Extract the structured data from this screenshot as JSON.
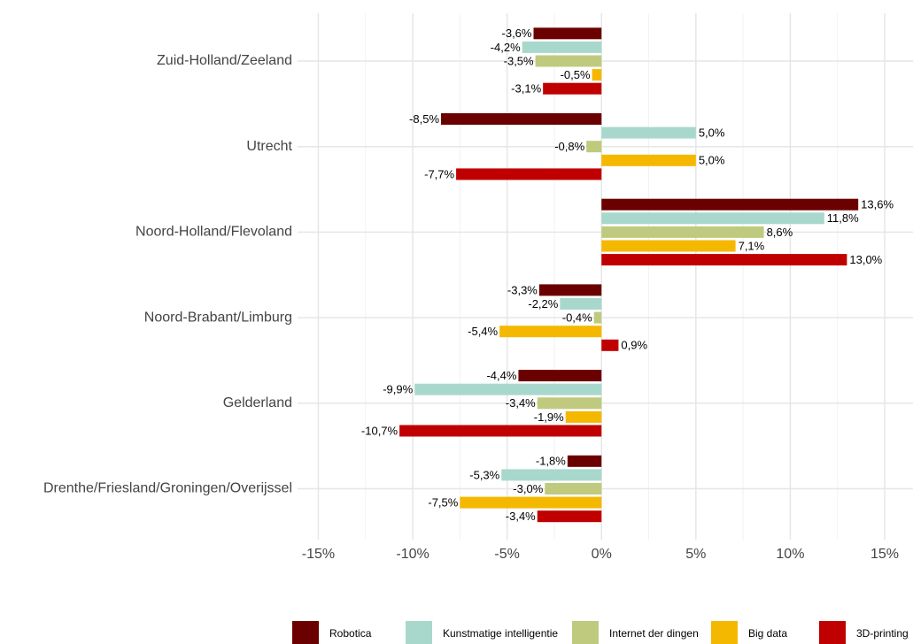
{
  "chart_data": {
    "type": "bar",
    "orientation": "horizontal",
    "categories": [
      "Zuid-Holland/Zeeland",
      "Utrecht",
      "Noord-Holland/Flevoland",
      "Noord-Brabant/Limburg",
      "Gelderland",
      "Drenthe/Friesland/Groningen/Overijssel"
    ],
    "series": [
      {
        "name": "Robotica",
        "color": "#6b0000",
        "values": [
          -3.6,
          -8.5,
          13.6,
          -3.3,
          -4.4,
          -1.8
        ],
        "value_labels": [
          "-3,6%",
          "-8,5%",
          "13,6%",
          "-3,3%",
          "-4,4%",
          "-1,8%"
        ]
      },
      {
        "name": "Kunstmatige intelligentie",
        "color": "#a8d8cc",
        "values": [
          -4.2,
          5.0,
          11.8,
          -2.2,
          -9.9,
          -5.3
        ],
        "value_labels": [
          "-4,2%",
          "5,0%",
          "11,8%",
          "-2,2%",
          "-9,9%",
          "-5,3%"
        ]
      },
      {
        "name": "Internet der dingen",
        "color": "#bfca7e",
        "values": [
          -3.5,
          -0.8,
          8.6,
          -0.4,
          -3.4,
          -3.0
        ],
        "value_labels": [
          "-3,5%",
          "-0,8%",
          "8,6%",
          "-0,4%",
          "-3,4%",
          "-3,0%"
        ]
      },
      {
        "name": "Big data",
        "color": "#f5b800",
        "values": [
          -0.5,
          5.0,
          7.1,
          -5.4,
          -1.9,
          -7.5
        ],
        "value_labels": [
          "-0,5%",
          "5,0%",
          "7,1%",
          "-5,4%",
          "-1,9%",
          "-7,5%"
        ]
      },
      {
        "name": "3D-printing",
        "color": "#c00000",
        "values": [
          -3.1,
          -7.7,
          13.0,
          0.9,
          -10.7,
          -3.4
        ],
        "value_labels": [
          "-3,1%",
          "-7,7%",
          "13,0%",
          "0,9%",
          "-10,7%",
          "-3,4%"
        ]
      }
    ],
    "xlim": [
      -16.1,
      16.5
    ],
    "xticks": [
      {
        "value": -15,
        "label": "-15%"
      },
      {
        "value": -10,
        "label": "-10%"
      },
      {
        "value": -5,
        "label": "-5%"
      },
      {
        "value": 0,
        "label": "0%"
      },
      {
        "value": 5,
        "label": "5%"
      },
      {
        "value": 10,
        "label": "10%"
      },
      {
        "value": 15,
        "label": "15%"
      }
    ],
    "grid": true,
    "legend": "bottom"
  }
}
